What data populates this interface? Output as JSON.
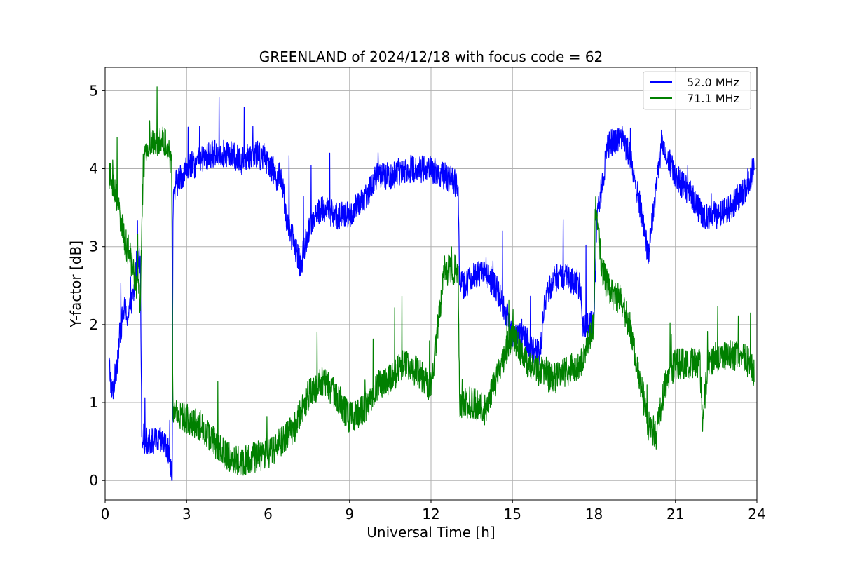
{
  "chart_data": {
    "type": "line",
    "title": "GREENLAND of 2024/12/18 with focus code = 62",
    "xlabel": "Universal Time [h]",
    "ylabel": "Y-factor [dB]",
    "xlim": [
      0,
      24
    ],
    "ylim": [
      -0.25,
      5.3
    ],
    "x_ticks": [
      0,
      3,
      6,
      9,
      12,
      15,
      18,
      21,
      24
    ],
    "y_ticks": [
      0,
      1,
      2,
      3,
      4,
      5
    ],
    "grid": true,
    "legend_position": "top-right",
    "series": [
      {
        "name": "52.0 MHz",
        "color": "#0000ff",
        "noise": 0.18,
        "x": [
          0.15,
          0.25,
          0.4,
          0.55,
          0.7,
          0.85,
          1.0,
          1.1,
          1.2,
          1.3,
          1.35,
          1.5,
          1.8,
          2.1,
          2.3,
          2.4,
          2.47,
          2.5,
          2.6,
          2.8,
          3.0,
          3.5,
          4.0,
          4.5,
          5.0,
          5.5,
          6.0,
          6.3,
          6.5,
          6.7,
          7.0,
          7.2,
          7.4,
          7.7,
          8.0,
          8.5,
          9.0,
          9.5,
          10.0,
          10.5,
          11.0,
          11.5,
          12.0,
          12.5,
          13.0,
          13.05,
          13.2,
          13.5,
          14.0,
          14.5,
          15.0,
          15.5,
          16.0,
          16.2,
          16.5,
          17.0,
          17.5,
          17.6,
          18.0,
          18.1,
          18.5,
          19.0,
          19.3,
          19.7,
          20.0,
          20.3,
          20.5,
          21.0,
          21.5,
          22.0,
          22.5,
          23.0,
          23.5,
          23.9
        ],
        "y": [
          1.5,
          1.1,
          1.4,
          1.9,
          2.2,
          2.1,
          2.3,
          2.5,
          3.0,
          2.7,
          0.6,
          0.5,
          0.5,
          0.5,
          0.4,
          0.2,
          0.1,
          3.5,
          3.8,
          3.9,
          4.0,
          4.1,
          4.2,
          4.2,
          4.1,
          4.2,
          4.1,
          3.9,
          3.9,
          3.3,
          3.0,
          2.75,
          3.1,
          3.4,
          3.5,
          3.4,
          3.4,
          3.6,
          3.9,
          3.9,
          4.0,
          4.0,
          4.0,
          3.9,
          3.8,
          2.6,
          2.5,
          2.6,
          2.7,
          2.4,
          1.9,
          1.8,
          1.6,
          2.3,
          2.6,
          2.6,
          2.5,
          2.0,
          2.0,
          3.3,
          4.3,
          4.4,
          4.2,
          3.5,
          2.9,
          3.8,
          4.3,
          3.9,
          3.7,
          3.4,
          3.4,
          3.5,
          3.7,
          4.0
        ]
      },
      {
        "name": "71.1 MHz",
        "color": "#008000",
        "noise": 0.2,
        "x": [
          0.15,
          0.3,
          0.5,
          0.7,
          0.9,
          1.1,
          1.3,
          1.4,
          1.6,
          1.8,
          2.0,
          2.3,
          2.45,
          2.5,
          2.6,
          2.8,
          3.0,
          3.5,
          4.0,
          4.5,
          5.0,
          5.5,
          6.0,
          6.5,
          7.0,
          7.5,
          8.0,
          8.5,
          9.0,
          9.5,
          10.0,
          10.5,
          11.0,
          11.5,
          12.0,
          12.5,
          13.0,
          13.05,
          13.5,
          14.0,
          14.5,
          15.0,
          15.5,
          16.0,
          16.5,
          17.0,
          17.5,
          17.8,
          18.0,
          18.05,
          18.3,
          18.6,
          19.0,
          19.3,
          19.7,
          20.0,
          20.3,
          20.6,
          21.0,
          21.5,
          21.9,
          22.0,
          22.2,
          22.5,
          23.0,
          23.5,
          23.9
        ],
        "y": [
          3.9,
          3.8,
          3.5,
          3.1,
          2.9,
          2.6,
          2.3,
          4.0,
          4.3,
          4.3,
          4.4,
          4.3,
          4.0,
          0.8,
          0.9,
          0.8,
          0.8,
          0.7,
          0.5,
          0.3,
          0.25,
          0.3,
          0.35,
          0.5,
          0.7,
          1.1,
          1.3,
          1.1,
          0.8,
          0.9,
          1.2,
          1.3,
          1.5,
          1.4,
          1.2,
          2.7,
          2.7,
          1.0,
          1.0,
          0.9,
          1.4,
          1.9,
          1.5,
          1.4,
          1.3,
          1.4,
          1.5,
          1.8,
          2.0,
          3.5,
          2.7,
          2.4,
          2.3,
          2.0,
          1.3,
          0.7,
          0.6,
          1.2,
          1.5,
          1.5,
          1.5,
          0.8,
          1.5,
          1.6,
          1.6,
          1.6,
          1.4
        ]
      }
    ]
  }
}
